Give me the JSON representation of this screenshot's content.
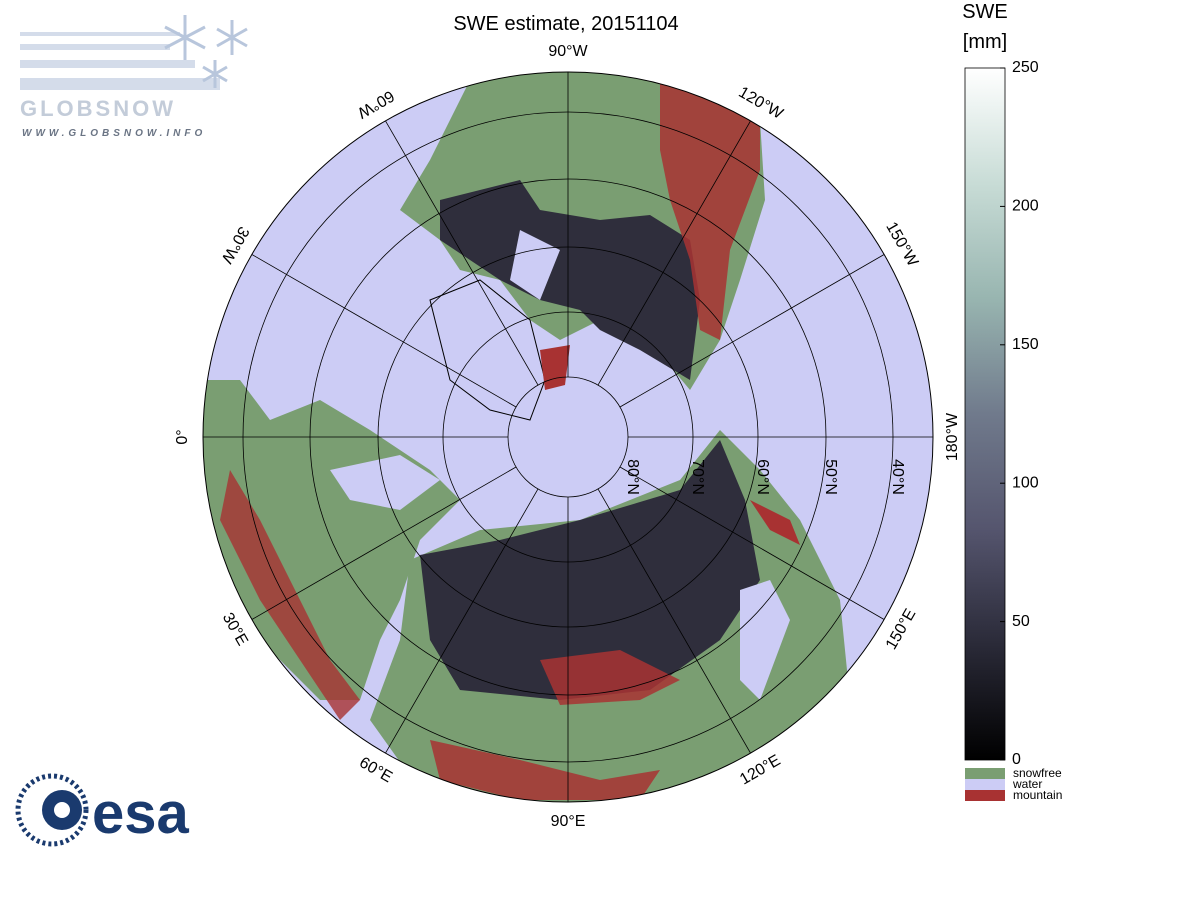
{
  "header": {
    "title": "SWE estimate, 20151104"
  },
  "map": {
    "lon_labels": [
      "90°W",
      "120°W",
      "150°W",
      "180°W",
      "150°E",
      "120°E",
      "90°E",
      "60°E",
      "30°E",
      "0°",
      "30°W",
      "60°W"
    ],
    "lat_labels": [
      "80°N",
      "70°N",
      "60°N",
      "50°N",
      "40°N"
    ]
  },
  "colorbar": {
    "title": [
      "SWE",
      "[mm]"
    ],
    "lim": [
      0,
      250
    ],
    "ticks": [
      0,
      50,
      100,
      150,
      200,
      250
    ],
    "colormap": [
      "#000000",
      "#2a2a38",
      "#55556e",
      "#707a8c",
      "#98b5b0",
      "#c8dcd6",
      "#ffffff"
    ],
    "legend": [
      {
        "label": "snowfree",
        "color": "#7a9e72"
      },
      {
        "label": "water",
        "color": "#ccccf5"
      },
      {
        "label": "mountain",
        "color": "#a83232"
      }
    ]
  },
  "logos": {
    "globsnow": "GLOBSNOW",
    "url": "WWW.GLOBSNOW.INFO",
    "esa": "esa"
  }
}
